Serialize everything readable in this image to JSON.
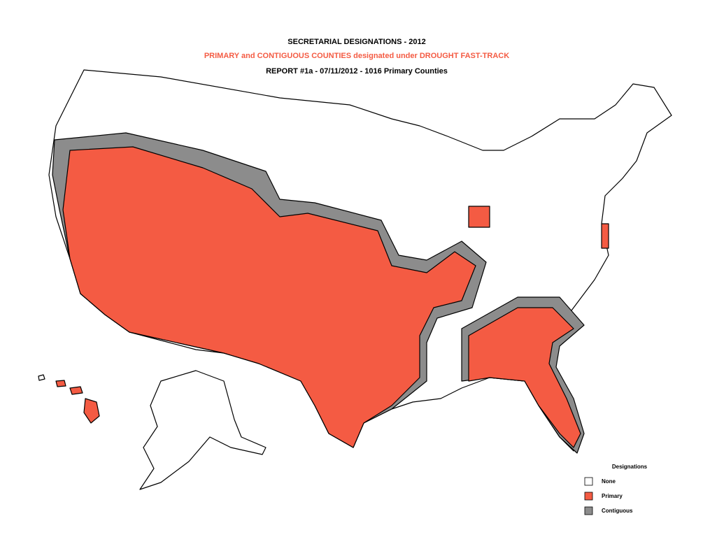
{
  "header": {
    "title": "SECRETARIAL DESIGNATIONS - 2012",
    "subtitle": "PRIMARY and CONTIGUOUS COUNTIES designated under DROUGHT FAST-TRACK",
    "report": "REPORT #1a - 07/11/2012 - 1016 Primary Counties"
  },
  "legend": {
    "title": "Designations",
    "items": [
      {
        "label": "None",
        "color": "#ffffff"
      },
      {
        "label": "Primary",
        "color": "#f45b43"
      },
      {
        "label": "Contiguous",
        "color": "#8c8c8c"
      }
    ]
  }
}
